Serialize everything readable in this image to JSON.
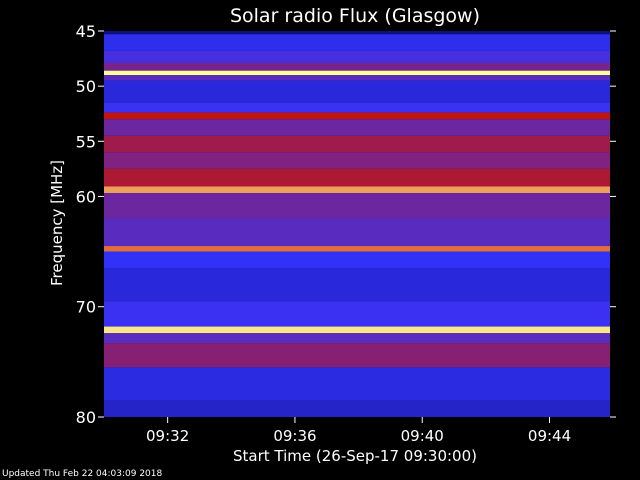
{
  "chart_data": {
    "type": "heatmap",
    "title": "Solar radio Flux (Glasgow)",
    "xlabel": "Start Time (26-Sep-17 09:30:00)",
    "ylabel": "Frequency [MHz]",
    "ylim": [
      45,
      80
    ],
    "y_inverted": true,
    "xlim_minutes": [
      0,
      15.9
    ],
    "x_ticks": [
      {
        "label": "09:32",
        "minute": 2
      },
      {
        "label": "09:36",
        "minute": 6
      },
      {
        "label": "09:40",
        "minute": 10
      },
      {
        "label": "09:44",
        "minute": 14
      }
    ],
    "y_ticks": [
      45,
      50,
      55,
      60,
      70,
      80
    ],
    "intensity_bands": [
      {
        "f_start": 45.0,
        "f_end": 45.3,
        "level": 0.05
      },
      {
        "f_start": 45.3,
        "f_end": 46.8,
        "level": 0.35
      },
      {
        "f_start": 46.8,
        "f_end": 47.9,
        "level": 0.45
      },
      {
        "f_start": 47.9,
        "f_end": 48.6,
        "level": 0.58
      },
      {
        "f_start": 48.6,
        "f_end": 49.0,
        "level": 1.0
      },
      {
        "f_start": 49.0,
        "f_end": 49.5,
        "level": 0.5
      },
      {
        "f_start": 49.5,
        "f_end": 51.5,
        "level": 0.3
      },
      {
        "f_start": 51.5,
        "f_end": 52.4,
        "level": 0.42
      },
      {
        "f_start": 52.4,
        "f_end": 53.0,
        "level": 0.78
      },
      {
        "f_start": 53.0,
        "f_end": 54.5,
        "level": 0.55
      },
      {
        "f_start": 54.5,
        "f_end": 56.0,
        "level": 0.68
      },
      {
        "f_start": 56.0,
        "f_end": 57.5,
        "level": 0.6
      },
      {
        "f_start": 57.5,
        "f_end": 59.1,
        "level": 0.72
      },
      {
        "f_start": 59.1,
        "f_end": 59.7,
        "level": 0.92
      },
      {
        "f_start": 59.7,
        "f_end": 62.0,
        "level": 0.55
      },
      {
        "f_start": 62.0,
        "f_end": 64.5,
        "level": 0.5
      },
      {
        "f_start": 64.5,
        "f_end": 65.0,
        "level": 0.88
      },
      {
        "f_start": 65.0,
        "f_end": 66.5,
        "level": 0.38
      },
      {
        "f_start": 66.5,
        "f_end": 69.5,
        "level": 0.3
      },
      {
        "f_start": 69.5,
        "f_end": 71.8,
        "level": 0.42
      },
      {
        "f_start": 71.8,
        "f_end": 72.4,
        "level": 0.98
      },
      {
        "f_start": 72.4,
        "f_end": 73.3,
        "level": 0.5
      },
      {
        "f_start": 73.3,
        "f_end": 75.5,
        "level": 0.62
      },
      {
        "f_start": 75.5,
        "f_end": 78.5,
        "level": 0.32
      },
      {
        "f_start": 78.5,
        "f_end": 80.0,
        "level": 0.25
      }
    ],
    "colors": {
      "low": "#0a0a6e",
      "mid": "#3333ff",
      "high": "#cc1100",
      "peak": "#ffff99",
      "background": "#000000",
      "text": "#ffffff"
    }
  },
  "footer": {
    "updated": "Updated Thu Feb 22 04:03:09 2018"
  }
}
